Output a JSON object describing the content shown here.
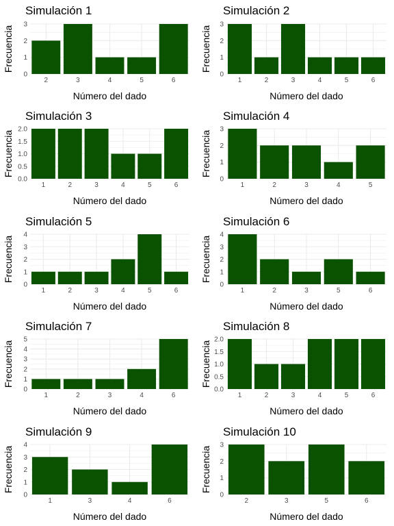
{
  "colors": {
    "bar": "#0b5200",
    "grid": "#ebebeb"
  },
  "chart_data": [
    {
      "type": "bar",
      "title": "Simulación 1",
      "xlabel": "Número del dado",
      "ylabel": "Frecuencia",
      "categories": [
        "2",
        "3",
        "4",
        "5",
        "6"
      ],
      "values": [
        2,
        3,
        1,
        1,
        3
      ],
      "ylim": [
        0,
        3
      ],
      "yticks": [
        "0",
        "1",
        "2",
        "3"
      ],
      "grid": true
    },
    {
      "type": "bar",
      "title": "Simulación 2",
      "xlabel": "Número del dado",
      "ylabel": "Frecuencia",
      "categories": [
        "1",
        "2",
        "3",
        "4",
        "5",
        "6"
      ],
      "values": [
        3,
        1,
        3,
        1,
        1,
        1
      ],
      "ylim": [
        0,
        3
      ],
      "yticks": [
        "0",
        "1",
        "2",
        "3"
      ],
      "grid": true
    },
    {
      "type": "bar",
      "title": "Simulación 3",
      "xlabel": "Número del dado",
      "ylabel": "Frecuencia",
      "categories": [
        "1",
        "2",
        "3",
        "4",
        "5",
        "6"
      ],
      "values": [
        2,
        2,
        2,
        1,
        1,
        2
      ],
      "ylim": [
        0,
        2
      ],
      "yticks": [
        "0.0",
        "0.5",
        "1.0",
        "1.5",
        "2.0"
      ],
      "grid": true
    },
    {
      "type": "bar",
      "title": "Simulación 4",
      "xlabel": "Número del dado",
      "ylabel": "Frecuencia",
      "categories": [
        "1",
        "2",
        "3",
        "4",
        "5"
      ],
      "values": [
        3,
        2,
        2,
        1,
        2
      ],
      "ylim": [
        0,
        3
      ],
      "yticks": [
        "0",
        "1",
        "2",
        "3"
      ],
      "grid": true
    },
    {
      "type": "bar",
      "title": "Simulación 5",
      "xlabel": "Número del dado",
      "ylabel": "Frecuencia",
      "categories": [
        "1",
        "2",
        "3",
        "4",
        "5",
        "6"
      ],
      "values": [
        1,
        1,
        1,
        2,
        4,
        1
      ],
      "ylim": [
        0,
        4
      ],
      "yticks": [
        "0",
        "1",
        "2",
        "3",
        "4"
      ],
      "grid": true
    },
    {
      "type": "bar",
      "title": "Simulación 6",
      "xlabel": "Número del dado",
      "ylabel": "Frecuencia",
      "categories": [
        "1",
        "2",
        "3",
        "5",
        "6"
      ],
      "values": [
        4,
        2,
        1,
        2,
        1
      ],
      "ylim": [
        0,
        4
      ],
      "yticks": [
        "0",
        "1",
        "2",
        "3",
        "4"
      ],
      "grid": true
    },
    {
      "type": "bar",
      "title": "Simulación 7",
      "xlabel": "Número del dado",
      "ylabel": "Frecuencia",
      "categories": [
        "1",
        "2",
        "3",
        "4",
        "6"
      ],
      "values": [
        1,
        1,
        1,
        2,
        5
      ],
      "ylim": [
        0,
        5
      ],
      "yticks": [
        "0",
        "1",
        "2",
        "3",
        "4",
        "5"
      ],
      "grid": true
    },
    {
      "type": "bar",
      "title": "Simulación 8",
      "xlabel": "Número del dado",
      "ylabel": "Frecuencia",
      "categories": [
        "1",
        "2",
        "3",
        "4",
        "5",
        "6"
      ],
      "values": [
        2,
        1,
        1,
        2,
        2,
        2
      ],
      "ylim": [
        0,
        2
      ],
      "yticks": [
        "0.0",
        "0.5",
        "1.0",
        "1.5",
        "2.0"
      ],
      "grid": true
    },
    {
      "type": "bar",
      "title": "Simulación 9",
      "xlabel": "Número del dado",
      "ylabel": "Frecuencia",
      "categories": [
        "1",
        "3",
        "4",
        "6"
      ],
      "values": [
        3,
        2,
        1,
        4
      ],
      "ylim": [
        0,
        4
      ],
      "yticks": [
        "0",
        "1",
        "2",
        "3",
        "4"
      ],
      "grid": true
    },
    {
      "type": "bar",
      "title": "Simulación 10",
      "xlabel": "Número del dado",
      "ylabel": "Frecuencia",
      "categories": [
        "2",
        "3",
        "5",
        "6"
      ],
      "values": [
        3,
        2,
        3,
        2
      ],
      "ylim": [
        0,
        3
      ],
      "yticks": [
        "0",
        "1",
        "2",
        "3"
      ],
      "grid": true
    }
  ]
}
